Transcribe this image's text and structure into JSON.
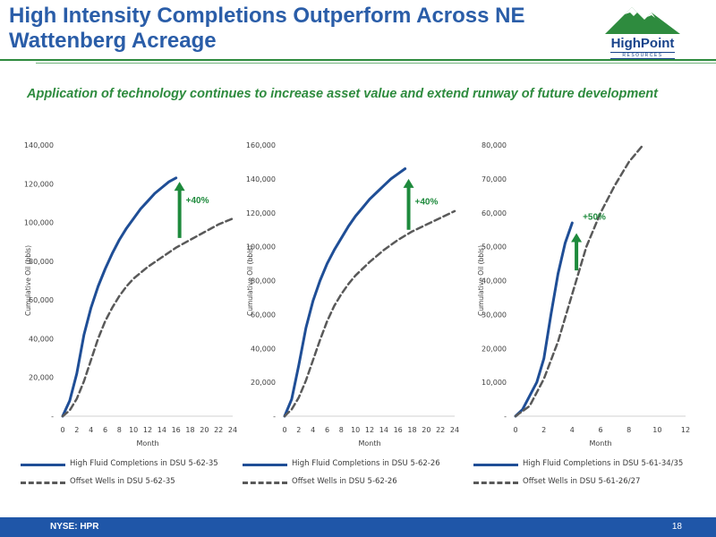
{
  "header": {
    "title": "High Intensity Completions Outperform Across NE Wattenberg Acreage",
    "logo_text": "HighPoint",
    "logo_subtext": "RESOURCES"
  },
  "subtitle": "Application of technology continues to increase asset value and extend runway of future development",
  "footer": {
    "ticker": "NYSE: HPR",
    "page_number": "18"
  },
  "colors": {
    "title": "#2a5da8",
    "accent_green": "#2e8b3e",
    "high_fluid_line": "#1f4e96",
    "offset_line": "#595959",
    "footer_bar": "#1f56a8"
  },
  "chart_data": [
    {
      "type": "line",
      "xlabel": "Month",
      "ylabel": "Cumulative Oil (bbls)",
      "xlim": [
        0,
        24
      ],
      "ylim": [
        0,
        140000
      ],
      "x_ticks": [
        0,
        2,
        4,
        6,
        8,
        10,
        12,
        14,
        16,
        18,
        20,
        22,
        24
      ],
      "y_ticks": [
        0,
        20000,
        40000,
        60000,
        80000,
        100000,
        120000,
        140000
      ],
      "y_tick_labels": [
        "-",
        "20,000",
        "40,000",
        "60,000",
        "80,000",
        "100,000",
        "120,000",
        "140,000"
      ],
      "annotation": {
        "text": "+40%",
        "arrow_x": 16.5,
        "arrow_from": 92000,
        "arrow_to": 121000,
        "label_y": 110000
      },
      "series": [
        {
          "name": "High Fluid Completions in DSU 5-62-35",
          "style": "solid",
          "x": [
            0,
            1,
            2,
            3,
            4,
            5,
            6,
            7,
            8,
            9,
            10,
            11,
            12,
            13,
            14,
            15,
            16
          ],
          "y": [
            0,
            8000,
            22000,
            42000,
            56000,
            67000,
            76000,
            84000,
            91000,
            97000,
            102000,
            107000,
            111000,
            115000,
            118000,
            121000,
            123000
          ]
        },
        {
          "name": "Offset Wells in DSU 5-62-35",
          "style": "dashed",
          "x": [
            0,
            1,
            2,
            3,
            4,
            5,
            6,
            7,
            8,
            9,
            10,
            12,
            14,
            16,
            18,
            20,
            22,
            24
          ],
          "y": [
            0,
            3000,
            9000,
            18000,
            29000,
            40000,
            49000,
            56000,
            62000,
            67000,
            71000,
            77000,
            82000,
            87000,
            91000,
            95000,
            99000,
            102000
          ]
        }
      ]
    },
    {
      "type": "line",
      "xlabel": "Month",
      "ylabel": "Cumulative Oil (bbls)",
      "xlim": [
        0,
        24
      ],
      "ylim": [
        0,
        160000
      ],
      "x_ticks": [
        0,
        2,
        4,
        6,
        8,
        10,
        12,
        14,
        16,
        18,
        20,
        22,
        24
      ],
      "y_ticks": [
        0,
        20000,
        40000,
        60000,
        80000,
        100000,
        120000,
        140000,
        160000
      ],
      "y_tick_labels": [
        "-",
        "20,000",
        "40,000",
        "60,000",
        "80,000",
        "100,000",
        "120,000",
        "140,000",
        "160,000"
      ],
      "annotation": {
        "text": "+40%",
        "arrow_x": 17.5,
        "arrow_from": 110000,
        "arrow_to": 140000,
        "label_y": 125000
      },
      "series": [
        {
          "name": "High Fluid Completions in DSU 5-62-26",
          "style": "solid",
          "x": [
            0,
            1,
            2,
            3,
            4,
            5,
            6,
            7,
            8,
            9,
            10,
            11,
            12,
            13,
            14,
            15,
            16,
            17
          ],
          "y": [
            0,
            10000,
            30000,
            52000,
            68000,
            80000,
            90000,
            98000,
            105000,
            112000,
            118000,
            123000,
            128000,
            132000,
            136000,
            140000,
            143000,
            146000
          ]
        },
        {
          "name": "Offset Wells in DSU 5-62-26",
          "style": "dashed",
          "x": [
            0,
            1,
            2,
            3,
            4,
            5,
            6,
            7,
            8,
            9,
            10,
            12,
            14,
            16,
            18,
            20,
            22,
            24
          ],
          "y": [
            0,
            4000,
            11000,
            21000,
            33000,
            45000,
            56000,
            65000,
            72000,
            78000,
            83000,
            91000,
            98000,
            104000,
            109000,
            113000,
            117000,
            121000
          ]
        }
      ]
    },
    {
      "type": "line",
      "xlabel": "Month",
      "ylabel": "Cumulative Oil (bbls)",
      "xlim": [
        0,
        12
      ],
      "ylim": [
        0,
        80000
      ],
      "x_ticks": [
        0,
        2,
        4,
        6,
        8,
        10,
        12
      ],
      "y_ticks": [
        0,
        10000,
        20000,
        30000,
        40000,
        50000,
        60000,
        70000,
        80000
      ],
      "y_tick_labels": [
        "-",
        "10,000",
        "20,000",
        "30,000",
        "40,000",
        "50,000",
        "60,000",
        "70,000",
        "80,000"
      ],
      "annotation": {
        "text": "+50%",
        "arrow_x": 4.3,
        "arrow_from": 43000,
        "arrow_to": 54000,
        "label_y": 58000
      },
      "series": [
        {
          "name": "High Fluid Completions in DSU 5-61-34/35",
          "style": "solid",
          "x": [
            0,
            0.5,
            1,
            1.5,
            2,
            2.5,
            3,
            3.5,
            4
          ],
          "y": [
            0,
            2000,
            6000,
            10000,
            17000,
            30000,
            42000,
            51000,
            57000
          ]
        },
        {
          "name": "Offset Wells in DSU 5-61-26/27",
          "style": "dashed",
          "x": [
            0,
            1,
            2,
            3,
            4,
            5,
            6,
            7,
            8,
            9
          ],
          "y": [
            0,
            3000,
            11000,
            22000,
            36000,
            50000,
            60000,
            68000,
            75000,
            80000
          ]
        }
      ]
    }
  ]
}
